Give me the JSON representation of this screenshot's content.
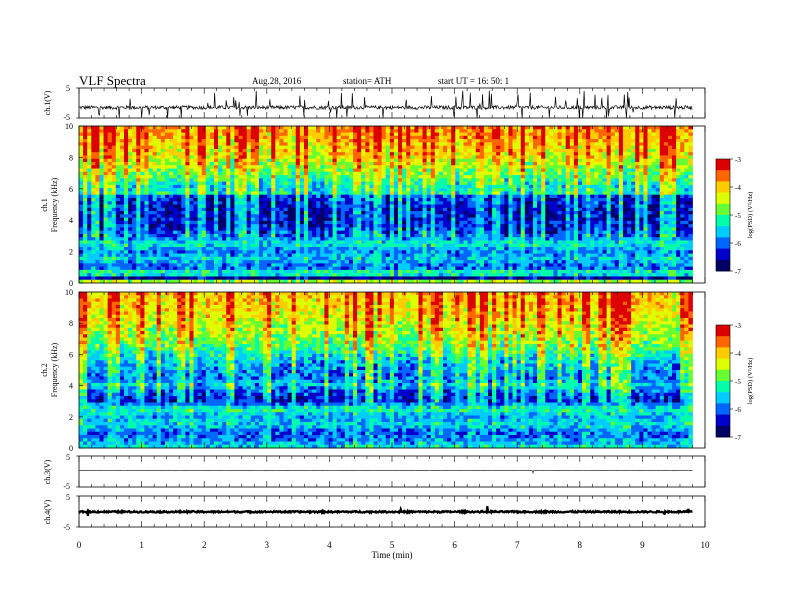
{
  "header": {
    "title": "VLF  Spectra",
    "date": "Aug.28, 2016",
    "station": "station= ATH",
    "start_ut": "start  UT  =    16: 50: 1"
  },
  "chart_data": [
    {
      "type": "line",
      "id": "ch1-waveform",
      "ylabel": "ch.1(V)",
      "ylim": [
        -5,
        5
      ],
      "y_ticks": [
        "5",
        "-5"
      ],
      "baseline": -1.5,
      "noise": 0.6,
      "spike_rate": 0.05,
      "spike_amplitude": 3.5,
      "color": "#000000"
    },
    {
      "type": "heatmap",
      "id": "ch1-spectrogram",
      "ylabel": "ch.1\nFrequency  (kHz)",
      "ylim": [
        0,
        10
      ],
      "y_ticks": [
        "0",
        "2",
        "4",
        "6",
        "8",
        "10"
      ],
      "colorbar": {
        "label": "log(PSD) (V²/Hz)",
        "range": [
          -7,
          -3
        ],
        "ticks": [
          "-3",
          "-4",
          "-5",
          "-6",
          "-7"
        ],
        "colors": [
          "#000066",
          "#0000cc",
          "#0066ff",
          "#00ccff",
          "#00ffaa",
          "#66ff33",
          "#ddff00",
          "#ffcc00",
          "#ff6600",
          "#dd0000",
          "#ffffff"
        ]
      },
      "band_profile": [
        {
          "f": 0.0,
          "v": -3.6
        },
        {
          "f": 0.3,
          "v": -6.8
        },
        {
          "f": 0.6,
          "v": -5.0
        },
        {
          "f": 1.0,
          "v": -6.2
        },
        {
          "f": 1.5,
          "v": -5.6
        },
        {
          "f": 2.0,
          "v": -6.0
        },
        {
          "f": 2.5,
          "v": -5.4
        },
        {
          "f": 3.0,
          "v": -6.1
        },
        {
          "f": 3.5,
          "v": -6.4
        },
        {
          "f": 4.5,
          "v": -6.5
        },
        {
          "f": 5.5,
          "v": -6.3
        },
        {
          "f": 5.8,
          "v": -5.1
        },
        {
          "f": 6.0,
          "v": -5.6
        },
        {
          "f": 7.0,
          "v": -4.9
        },
        {
          "f": 8.0,
          "v": -4.4
        },
        {
          "f": 9.0,
          "v": -4.1
        },
        {
          "f": 10.0,
          "v": -3.9
        }
      ]
    },
    {
      "type": "heatmap",
      "id": "ch2-spectrogram",
      "ylabel": "ch.2\nFrequency  (kHz)",
      "ylim": [
        0,
        10
      ],
      "y_ticks": [
        "0",
        "2",
        "4",
        "6",
        "8",
        "10"
      ],
      "colorbar": {
        "label": "log(PSD) (V²/Hz)",
        "range": [
          -7,
          -3
        ],
        "ticks": [
          "-3",
          "-4",
          "-5",
          "-6",
          "-7"
        ],
        "colors": [
          "#000066",
          "#0000cc",
          "#0066ff",
          "#00ccff",
          "#00ffaa",
          "#66ff33",
          "#ddff00",
          "#ffcc00",
          "#ff6600",
          "#dd0000",
          "#ffffff"
        ]
      },
      "band_profile": [
        {
          "f": 0.0,
          "v": -5.4
        },
        {
          "f": 0.5,
          "v": -5.9
        },
        {
          "f": 1.0,
          "v": -6.1
        },
        {
          "f": 1.5,
          "v": -5.5
        },
        {
          "f": 2.0,
          "v": -5.8
        },
        {
          "f": 2.5,
          "v": -5.2
        },
        {
          "f": 3.0,
          "v": -6.4
        },
        {
          "f": 3.5,
          "v": -6.2
        },
        {
          "f": 4.0,
          "v": -5.6
        },
        {
          "f": 4.5,
          "v": -6.0
        },
        {
          "f": 5.5,
          "v": -5.7
        },
        {
          "f": 6.5,
          "v": -5.0
        },
        {
          "f": 7.5,
          "v": -4.6
        },
        {
          "f": 8.5,
          "v": -4.3
        },
        {
          "f": 10.0,
          "v": -4.0
        }
      ]
    },
    {
      "type": "line",
      "id": "ch3-waveform",
      "ylabel": "ch.3(V)",
      "ylim": [
        -5,
        5
      ],
      "y_ticks": [
        "5",
        "-5"
      ],
      "baseline": 0.3,
      "noise": 0.05,
      "spike_rate": 0.003,
      "spike_amplitude": 0.8,
      "color": "#333333"
    },
    {
      "type": "line",
      "id": "ch4-waveform",
      "ylabel": "ch.4(V)",
      "ylim": [
        -5,
        5
      ],
      "y_ticks": [
        "5",
        "-5"
      ],
      "baseline": -0.1,
      "noise": 0.25,
      "spike_rate": 0.004,
      "spike_amplitude": 1.2,
      "color": "#000000"
    }
  ],
  "x_axis": {
    "xlabel": "Time  (min)",
    "xlim": [
      0,
      10
    ],
    "data_end": 9.8,
    "ticks": [
      "0",
      "1",
      "2",
      "3",
      "4",
      "5",
      "6",
      "7",
      "8",
      "9",
      "10"
    ]
  }
}
